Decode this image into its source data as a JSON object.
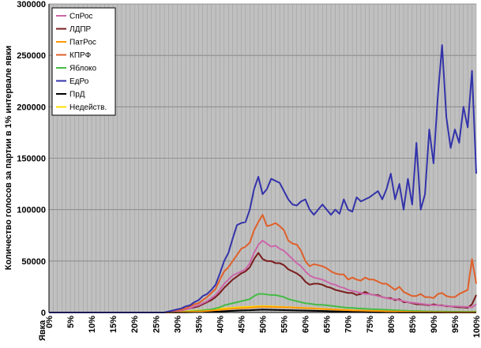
{
  "chart_data": {
    "type": "line",
    "title": "",
    "ylabel": "Количество голосов за партии в 1% интервале явки",
    "xlabel": "Явка",
    "ylim": [
      0,
      300000
    ],
    "yticks": [
      "0",
      "50000",
      "100000",
      "150000",
      "200000",
      "250000",
      "300000"
    ],
    "xticks": [
      "0%",
      "5%",
      "10%",
      "15%",
      "20%",
      "25%",
      "30%",
      "35%",
      "40%",
      "45%",
      "50%",
      "55%",
      "60%",
      "65%",
      "70%",
      "75%",
      "80%",
      "85%",
      "90%",
      "95%",
      "100%"
    ],
    "x": [
      0,
      1,
      2,
      3,
      4,
      5,
      6,
      7,
      8,
      9,
      10,
      11,
      12,
      13,
      14,
      15,
      16,
      17,
      18,
      19,
      20,
      21,
      22,
      23,
      24,
      25,
      26,
      27,
      28,
      29,
      30,
      31,
      32,
      33,
      34,
      35,
      36,
      37,
      38,
      39,
      40,
      41,
      42,
      43,
      44,
      45,
      46,
      47,
      48,
      49,
      50,
      51,
      52,
      53,
      54,
      55,
      56,
      57,
      58,
      59,
      60,
      61,
      62,
      63,
      64,
      65,
      66,
      67,
      68,
      69,
      70,
      71,
      72,
      73,
      74,
      75,
      76,
      77,
      78,
      79,
      80,
      81,
      82,
      83,
      84,
      85,
      86,
      87,
      88,
      89,
      90,
      91,
      92,
      93,
      94,
      95,
      96,
      97,
      98,
      99,
      100
    ],
    "grid": true,
    "legend_position": "top-left",
    "background": "#c0c0c0",
    "series": [
      {
        "name": "СпРос",
        "color": "#cc66aa",
        "values": [
          0,
          0,
          0,
          0,
          0,
          0,
          0,
          0,
          0,
          0,
          0,
          0,
          0,
          0,
          0,
          0,
          0,
          0,
          0,
          0,
          0,
          0,
          0,
          0,
          0,
          0,
          0,
          0,
          500,
          1000,
          1500,
          2000,
          3000,
          4000,
          6000,
          7000,
          9000,
          11000,
          14000,
          17000,
          22000,
          28000,
          32000,
          36000,
          38000,
          40000,
          42000,
          48000,
          58000,
          66000,
          70000,
          67000,
          64000,
          65000,
          62000,
          60000,
          56000,
          52000,
          48000,
          45000,
          40000,
          36000,
          34000,
          33000,
          32000,
          30000,
          28000,
          27000,
          25000,
          24000,
          22000,
          21000,
          20000,
          19000,
          18000,
          18000,
          17000,
          16000,
          15000,
          14000,
          13000,
          13000,
          12000,
          11000,
          10000,
          9500,
          9000,
          8500,
          8000,
          7500,
          7000,
          7000,
          6500,
          6500,
          6000,
          6000,
          5800,
          5600,
          5500,
          5000,
          8000
        ]
      },
      {
        "name": "ЛДПР",
        "color": "#7a1c1c",
        "values": [
          0,
          0,
          0,
          0,
          0,
          0,
          0,
          0,
          0,
          0,
          0,
          0,
          0,
          0,
          0,
          0,
          0,
          0,
          0,
          0,
          0,
          0,
          0,
          0,
          0,
          0,
          0,
          0,
          500,
          1000,
          1500,
          2000,
          3000,
          4000,
          5000,
          6000,
          8000,
          10000,
          12000,
          15000,
          19000,
          24000,
          28000,
          32000,
          35000,
          38000,
          40000,
          44000,
          52000,
          58000,
          52000,
          50000,
          50000,
          48000,
          48000,
          46000,
          42000,
          40000,
          38000,
          35000,
          30000,
          27000,
          28000,
          28000,
          27000,
          25000,
          24000,
          22000,
          21000,
          20000,
          19000,
          19000,
          17000,
          18000,
          20000,
          18000,
          17000,
          17000,
          15000,
          14000,
          14000,
          12000,
          13000,
          10000,
          10000,
          9000,
          8000,
          8000,
          7500,
          7000,
          8000,
          7000,
          7000,
          6000,
          6000,
          5500,
          5000,
          5000,
          4500,
          8000,
          17000
        ]
      },
      {
        "name": "ПатРос",
        "color": "#ff9900",
        "values": [
          0,
          0,
          0,
          0,
          0,
          0,
          0,
          0,
          0,
          0,
          0,
          0,
          0,
          0,
          0,
          0,
          0,
          0,
          0,
          0,
          0,
          0,
          0,
          0,
          0,
          0,
          0,
          0,
          0,
          200,
          300,
          400,
          500,
          600,
          800,
          1000,
          1200,
          1500,
          1800,
          2200,
          2600,
          3000,
          3400,
          3800,
          4000,
          4200,
          4400,
          4600,
          5000,
          5400,
          5600,
          5500,
          5400,
          5300,
          5200,
          5100,
          5000,
          4800,
          4600,
          4400,
          4200,
          4000,
          3800,
          3600,
          3400,
          3200,
          3000,
          2800,
          2600,
          2400,
          2200,
          2000,
          1900,
          1800,
          1700,
          1600,
          1500,
          1400,
          1300,
          1200,
          1100,
          1000,
          900,
          800,
          700,
          600,
          500,
          500,
          400,
          400,
          300,
          300,
          300,
          200,
          200,
          200,
          200,
          200,
          200,
          200,
          300
        ]
      },
      {
        "name": "КПРФ",
        "color": "#e0602a",
        "values": [
          0,
          0,
          0,
          0,
          0,
          0,
          0,
          0,
          0,
          0,
          0,
          0,
          0,
          0,
          0,
          0,
          0,
          0,
          0,
          0,
          0,
          0,
          0,
          0,
          0,
          0,
          0,
          0,
          800,
          1500,
          2000,
          3000,
          4000,
          6000,
          8000,
          9000,
          12000,
          15000,
          19000,
          23000,
          32000,
          40000,
          44000,
          50000,
          56000,
          62000,
          64000,
          68000,
          80000,
          88000,
          95000,
          84000,
          85000,
          87000,
          84000,
          80000,
          70000,
          67000,
          66000,
          60000,
          50000,
          45000,
          47000,
          46000,
          45000,
          43000,
          40000,
          38000,
          37000,
          37000,
          32000,
          34000,
          32000,
          31000,
          34000,
          32000,
          32000,
          30000,
          28000,
          28000,
          25000,
          22000,
          25000,
          20000,
          18000,
          16000,
          16000,
          18000,
          15000,
          15000,
          14000,
          18000,
          19000,
          16000,
          15000,
          15000,
          18000,
          20000,
          22000,
          52000,
          28000
        ]
      },
      {
        "name": "Яблоко",
        "color": "#44bb44",
        "values": [
          0,
          0,
          0,
          0,
          0,
          0,
          0,
          0,
          0,
          0,
          0,
          0,
          0,
          0,
          0,
          0,
          0,
          0,
          0,
          0,
          0,
          0,
          0,
          0,
          0,
          0,
          0,
          0,
          200,
          300,
          400,
          600,
          800,
          1000,
          1300,
          1600,
          2000,
          2500,
          3000,
          4000,
          5000,
          7000,
          8000,
          9000,
          10000,
          11000,
          12000,
          13000,
          16000,
          18000,
          18000,
          17500,
          17000,
          17000,
          16000,
          15000,
          13000,
          12000,
          11000,
          10000,
          9000,
          8500,
          8000,
          7500,
          7500,
          7000,
          6500,
          6000,
          5500,
          5000,
          4500,
          4500,
          4000,
          3800,
          3600,
          3400,
          3200,
          3000,
          2800,
          2600,
          2400,
          2200,
          2000,
          1800,
          1600,
          1500,
          1400,
          1300,
          1200,
          1100,
          1000,
          1000,
          900,
          900,
          800,
          800,
          800,
          700,
          700,
          700,
          800
        ]
      },
      {
        "name": "ЕдРо",
        "color": "#3333aa",
        "values": [
          0,
          0,
          0,
          0,
          0,
          0,
          0,
          0,
          0,
          0,
          0,
          0,
          0,
          0,
          0,
          0,
          0,
          0,
          0,
          0,
          0,
          0,
          0,
          0,
          0,
          0,
          0,
          0,
          1000,
          2000,
          3000,
          4000,
          6000,
          7000,
          10000,
          12000,
          16000,
          18000,
          22000,
          27000,
          38000,
          50000,
          58000,
          72000,
          85000,
          87000,
          88000,
          100000,
          120000,
          132000,
          115000,
          120000,
          130000,
          128000,
          126000,
          118000,
          110000,
          105000,
          104000,
          108000,
          110000,
          100000,
          95000,
          100000,
          105000,
          100000,
          95000,
          100000,
          96000,
          110000,
          100000,
          98000,
          112000,
          108000,
          110000,
          112000,
          115000,
          118000,
          110000,
          120000,
          135000,
          110000,
          125000,
          100000,
          130000,
          105000,
          165000,
          100000,
          115000,
          178000,
          145000,
          210000,
          260000,
          190000,
          160000,
          178000,
          165000,
          200000,
          180000,
          235000,
          135000
        ]
      },
      {
        "name": "ПрД",
        "color": "#000000",
        "values": [
          0,
          0,
          0,
          0,
          0,
          0,
          0,
          0,
          0,
          0,
          0,
          0,
          0,
          0,
          0,
          0,
          0,
          0,
          0,
          0,
          0,
          0,
          0,
          0,
          0,
          0,
          0,
          0,
          0,
          100,
          100,
          200,
          200,
          300,
          400,
          500,
          600,
          700,
          800,
          900,
          1000,
          1200,
          1400,
          1600,
          1800,
          2000,
          2100,
          2200,
          2400,
          2600,
          2800,
          2700,
          2600,
          2500,
          2400,
          2300,
          2200,
          2100,
          2000,
          1900,
          1800,
          1700,
          1600,
          1500,
          1400,
          1300,
          1200,
          1100,
          1000,
          900,
          800,
          700,
          600,
          500,
          400,
          300,
          300,
          200,
          200,
          200,
          200,
          200,
          100,
          100,
          100,
          100,
          100,
          100,
          100,
          100,
          100,
          100,
          100,
          100,
          100,
          100,
          100,
          100,
          100,
          100,
          100
        ]
      },
      {
        "name": "Недейств.",
        "color": "#ffdd00",
        "values": [
          0,
          0,
          0,
          0,
          0,
          0,
          0,
          0,
          0,
          0,
          0,
          0,
          0,
          0,
          0,
          0,
          0,
          0,
          0,
          0,
          0,
          0,
          0,
          0,
          0,
          0,
          0,
          0,
          300,
          500,
          700,
          900,
          1100,
          1400,
          1700,
          2000,
          2300,
          2600,
          3000,
          3300,
          3600,
          4000,
          4300,
          4600,
          4900,
          5200,
          5400,
          5600,
          5800,
          6000,
          6200,
          6100,
          6000,
          5800,
          5600,
          5400,
          5200,
          5000,
          4800,
          4600,
          4400,
          4200,
          4000,
          3800,
          3600,
          3400,
          3200,
          3000,
          2800,
          2600,
          2400,
          2200,
          2000,
          1800,
          1600,
          1400,
          1200,
          1000,
          900,
          800,
          700,
          600,
          500,
          500,
          400,
          400,
          300,
          300,
          300,
          300,
          300,
          300,
          300,
          300,
          300,
          300,
          300,
          300,
          300,
          300,
          400
        ]
      }
    ]
  }
}
